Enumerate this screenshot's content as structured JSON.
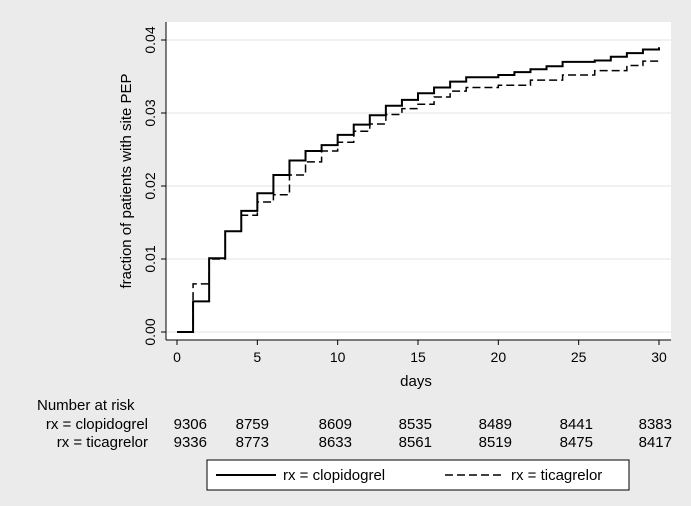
{
  "chart_data": {
    "type": "line",
    "xlabel": "days",
    "ylabel": "fraction of patients with site PEP",
    "xlim": [
      0,
      30
    ],
    "ylim": [
      0,
      0.04
    ],
    "x_ticks": [
      "0",
      "5",
      "10",
      "15",
      "20",
      "25",
      "30"
    ],
    "y_ticks": [
      "0.00",
      "0.01",
      "0.02",
      "0.03",
      "0.04"
    ],
    "grid": true,
    "step": true,
    "series": [
      {
        "name": "rx = clopidogrel",
        "line_style": "solid",
        "x": [
          0,
          1,
          2,
          3,
          4,
          5,
          6,
          7,
          8,
          9,
          10,
          11,
          12,
          13,
          14,
          15,
          16,
          17,
          18,
          20,
          21,
          22,
          23,
          24,
          26,
          27,
          28,
          29,
          30
        ],
        "y": [
          0,
          0.0042,
          0.0101,
          0.0138,
          0.0166,
          0.019,
          0.0215,
          0.0235,
          0.0248,
          0.0256,
          0.027,
          0.0284,
          0.0297,
          0.031,
          0.0318,
          0.0327,
          0.0335,
          0.0343,
          0.0349,
          0.0352,
          0.0356,
          0.036,
          0.0364,
          0.037,
          0.0372,
          0.0377,
          0.0382,
          0.0387,
          0.039
        ]
      },
      {
        "name": "rx = ticagrelor",
        "line_style": "dashed",
        "x": [
          0,
          1,
          2,
          3,
          4,
          5,
          6,
          7,
          8,
          9,
          10,
          11,
          12,
          13,
          14,
          15,
          16,
          17,
          18,
          20,
          22,
          24,
          26,
          28,
          29,
          30
        ],
        "y": [
          0,
          0.0066,
          0.01,
          0.0138,
          0.016,
          0.0178,
          0.0188,
          0.0215,
          0.0233,
          0.0248,
          0.026,
          0.0275,
          0.0285,
          0.0298,
          0.0306,
          0.0312,
          0.0322,
          0.033,
          0.0335,
          0.0338,
          0.0345,
          0.0352,
          0.0358,
          0.0365,
          0.0371,
          0.0374
        ]
      }
    ],
    "risk_table": {
      "title": "Number at risk",
      "rows": [
        {
          "label": "rx = clopidogrel",
          "values": [
            "9306",
            "8759",
            "8609",
            "8535",
            "8489",
            "8441",
            "8383"
          ]
        },
        {
          "label": "rx = ticagrelor",
          "values": [
            "9336",
            "8773",
            "8633",
            "8561",
            "8519",
            "8475",
            "8417"
          ]
        }
      ]
    },
    "legend": {
      "position": "bottom",
      "entries": [
        "rx = clopidogrel",
        "rx = ticagrelor"
      ]
    }
  }
}
